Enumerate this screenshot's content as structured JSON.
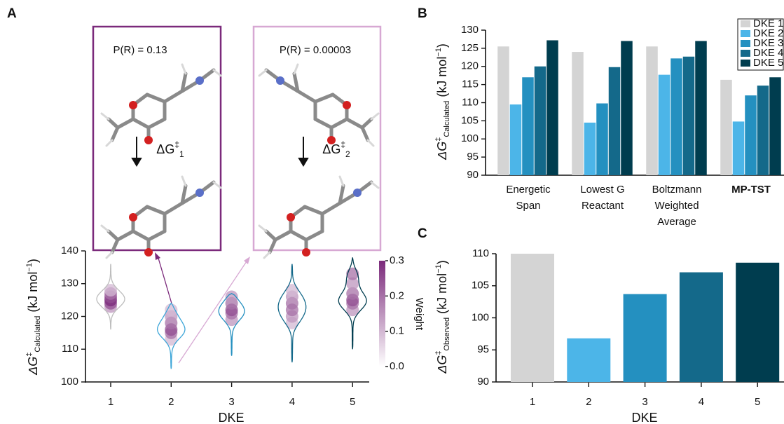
{
  "panel_labels": [
    "A",
    "B",
    "C"
  ],
  "chart_data": [
    {
      "type": "violin",
      "categories": [
        "1",
        "2",
        "3",
        "4",
        "5"
      ],
      "x_label": "DKE",
      "y_label": [
        "ΔG",
        "‡",
        "Calculated",
        " (kJ mol",
        "−1",
        ")"
      ],
      "ylim": [
        100,
        140
      ],
      "yticks": [
        100,
        110,
        120,
        130,
        140
      ],
      "violins": [
        {
          "color": "#bdbdbd",
          "range": [
            116,
            136
          ],
          "points": [
            123,
            124,
            125,
            126,
            127,
            128
          ],
          "weights": [
            0.15,
            0.25,
            0.3,
            0.25,
            0.2,
            0.1
          ]
        },
        {
          "color": "#3ea6d8",
          "range": [
            104,
            124
          ],
          "points": [
            113,
            115,
            116,
            118,
            120,
            122
          ],
          "weights": [
            0.1,
            0.2,
            0.25,
            0.2,
            0.15,
            0.1
          ]
        },
        {
          "color": "#2490c0",
          "range": [
            108,
            127
          ],
          "points": [
            119,
            121,
            122,
            124,
            126
          ],
          "weights": [
            0.15,
            0.2,
            0.25,
            0.2,
            0.15
          ]
        },
        {
          "color": "#14698a",
          "range": [
            106,
            136
          ],
          "points": [
            118,
            120,
            122,
            124,
            126,
            128
          ],
          "weights": [
            0.1,
            0.15,
            0.2,
            0.2,
            0.15,
            0.1
          ]
        },
        {
          "color": "#003d4f",
          "range": [
            110,
            138
          ],
          "points": [
            122,
            124,
            125,
            127,
            130,
            133
          ],
          "weights": [
            0.15,
            0.2,
            0.25,
            0.2,
            0.15,
            0.2
          ]
        }
      ],
      "colorbar": {
        "label": "Weight",
        "lim": [
          0,
          0.3
        ],
        "ticks": [
          {
            "value": 0,
            "label": "0.0"
          },
          0.1,
          0.2,
          0.3
        ],
        "colors": [
          "#ffffff",
          "#7b2a7b"
        ]
      },
      "insets": [
        {
          "probability": "P(R) = 0.13",
          "barrier": [
            "ΔG",
            "‡",
            "1"
          ],
          "color": "#7b2a7b"
        },
        {
          "probability": "P(R) = 0.00003",
          "barrier": [
            "ΔG",
            "‡",
            "2"
          ],
          "color": "#d7a8d3"
        }
      ]
    },
    {
      "type": "grouped_bar",
      "categories": [
        [
          "Energetic",
          "Span"
        ],
        [
          "Lowest G",
          "Reactant"
        ],
        [
          "Boltzmann",
          "Weighted",
          "Average"
        ],
        [
          "MP-TST"
        ]
      ],
      "emphasized_category": 3,
      "y_label": [
        "ΔG",
        "‡",
        "Calculated",
        " (kJ mol",
        "−1",
        ")"
      ],
      "ylim": [
        90,
        130
      ],
      "yticks": [
        90,
        95,
        100,
        105,
        110,
        115,
        120,
        125,
        130
      ],
      "legend": "upper right",
      "series": [
        {
          "name": "DKE 1",
          "color": "#d4d4d4",
          "values": [
            125.5,
            124,
            125.5,
            116.3
          ]
        },
        {
          "name": "DKE 2",
          "color": "#4cb5e8",
          "values": [
            109.5,
            104.5,
            117.7,
            104.8
          ]
        },
        {
          "name": "DKE 3",
          "color": "#2490c0",
          "values": [
            117,
            109.8,
            122.2,
            112
          ]
        },
        {
          "name": "DKE 4",
          "color": "#14698a",
          "values": [
            120,
            119.8,
            122.7,
            114.7
          ]
        },
        {
          "name": "DKE 5",
          "color": "#003d4f",
          "values": [
            127.2,
            127,
            127,
            117
          ]
        }
      ]
    },
    {
      "type": "bar",
      "categories": [
        "1",
        "2",
        "3",
        "4",
        "5"
      ],
      "values": [
        110,
        96.8,
        103.7,
        107.1,
        108.6
      ],
      "colors": [
        "#d4d4d4",
        "#4cb5e8",
        "#2490c0",
        "#14698a",
        "#003d4f"
      ],
      "x_label": "DKE",
      "y_label": [
        "ΔG",
        "‡",
        "Observed",
        " (kJ mol",
        "−1",
        ")"
      ],
      "ylim": [
        90,
        110
      ],
      "yticks": [
        90,
        95,
        100,
        105,
        110
      ]
    }
  ]
}
